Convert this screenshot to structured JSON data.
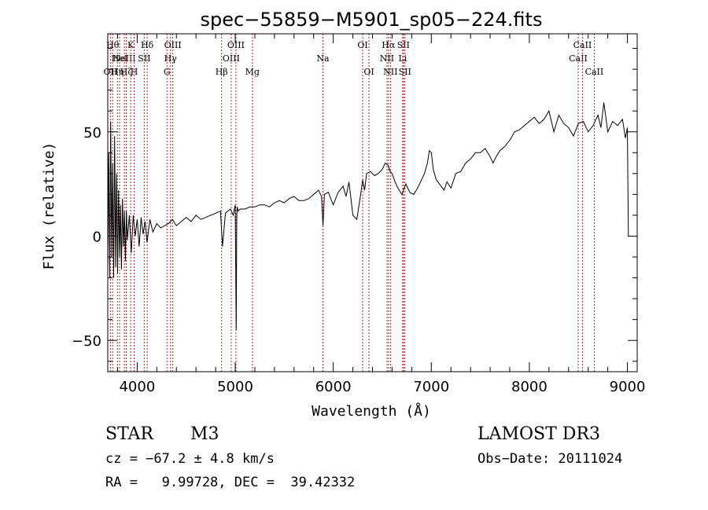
{
  "chart_data": {
    "type": "line",
    "title": "spec−55859−M5901_sp05−224.fits",
    "xlabel": "Wavelength (Å)",
    "ylabel": "Flux (relative)",
    "xlim": [
      3700,
      9100
    ],
    "ylim": [
      -65,
      97
    ],
    "xticks": [
      4000,
      5000,
      6000,
      7000,
      8000,
      9000
    ],
    "yticks": [
      -50,
      0,
      50
    ],
    "series": [
      {
        "name": "flux",
        "x": [
          3700,
          3710,
          3720,
          3730,
          3740,
          3750,
          3760,
          3770,
          3780,
          3790,
          3800,
          3810,
          3820,
          3830,
          3840,
          3850,
          3860,
          3870,
          3880,
          3890,
          3900,
          3920,
          3940,
          3960,
          3980,
          4000,
          4020,
          4040,
          4060,
          4080,
          4100,
          4130,
          4160,
          4200,
          4240,
          4280,
          4320,
          4360,
          4400,
          4450,
          4500,
          4550,
          4600,
          4650,
          4700,
          4750,
          4800,
          4850,
          4870,
          4900,
          4950,
          4980,
          5000,
          5010,
          5015,
          5020,
          5030,
          5050,
          5100,
          5150,
          5200,
          5250,
          5300,
          5350,
          5400,
          5450,
          5500,
          5550,
          5600,
          5650,
          5700,
          5750,
          5800,
          5850,
          5880,
          5895,
          5910,
          5950,
          6000,
          6050,
          6100,
          6130,
          6160,
          6200,
          6240,
          6280,
          6300,
          6320,
          6340,
          6380,
          6420,
          6460,
          6500,
          6530,
          6560,
          6580,
          6600,
          6630,
          6660,
          6700,
          6740,
          6780,
          6820,
          6860,
          6900,
          6930,
          6960,
          6980,
          7000,
          7020,
          7050,
          7100,
          7130,
          7160,
          7200,
          7250,
          7300,
          7350,
          7400,
          7450,
          7500,
          7550,
          7600,
          7630,
          7660,
          7700,
          7750,
          7800,
          7850,
          7900,
          7950,
          8000,
          8050,
          8100,
          8150,
          8200,
          8250,
          8300,
          8350,
          8400,
          8450,
          8500,
          8550,
          8600,
          8650,
          8700,
          8730,
          8760,
          8800,
          8850,
          8900,
          8950,
          8980,
          9000,
          9010
        ],
        "y": [
          -18,
          40,
          -20,
          55,
          -10,
          35,
          -20,
          48,
          -15,
          30,
          -18,
          22,
          -10,
          15,
          -16,
          18,
          -5,
          12,
          -12,
          12,
          -2,
          10,
          -8,
          10,
          0,
          8,
          -5,
          9,
          1,
          7,
          -3,
          8,
          2,
          6,
          4,
          5,
          6,
          8,
          5,
          7,
          9,
          7,
          10,
          8,
          9,
          10,
          11,
          12,
          -5,
          11,
          13,
          10,
          15,
          -45,
          8,
          14,
          12,
          13,
          13,
          14,
          14,
          15,
          15,
          14,
          16,
          17,
          16,
          18,
          19,
          17,
          17,
          18,
          20,
          22,
          19,
          5,
          20,
          21,
          15,
          21,
          24,
          19,
          26,
          10,
          8,
          20,
          27,
          22,
          30,
          31,
          29,
          30,
          32,
          35,
          34,
          31,
          30,
          26,
          23,
          20,
          25,
          21,
          20,
          23,
          27,
          30,
          35,
          41,
          40,
          32,
          27,
          24,
          22,
          26,
          23,
          30,
          31,
          35,
          37,
          40,
          40,
          42,
          38,
          35,
          38,
          41,
          43,
          46,
          50,
          51,
          53,
          55,
          57,
          54,
          56,
          60,
          50,
          58,
          54,
          52,
          48,
          54,
          55,
          50,
          53,
          58,
          52,
          64,
          50,
          55,
          53,
          56,
          47,
          52,
          0
        ]
      }
    ],
    "lines": [
      {
        "wave": 3727,
        "label": "OII",
        "row": 3
      },
      {
        "wave": 3750,
        "label": "Hθ",
        "row": 1
      },
      {
        "wave": 3798,
        "label": "Hη",
        "row": 3
      },
      {
        "wave": 3820,
        "label": "HeI",
        "row": 2
      },
      {
        "wave": 3869,
        "label": "NeIII",
        "row": 2
      },
      {
        "wave": 3889,
        "label": "Hζ",
        "row": 3
      },
      {
        "wave": 3934,
        "label": "K",
        "row": 1
      },
      {
        "wave": 3969,
        "label": "H",
        "row": 3
      },
      {
        "wave": 4072,
        "label": "SII",
        "row": 2
      },
      {
        "wave": 4102,
        "label": "Hδ",
        "row": 1
      },
      {
        "wave": 4304,
        "label": "G",
        "row": 3
      },
      {
        "wave": 4340,
        "label": "Hγ",
        "row": 2
      },
      {
        "wave": 4363,
        "label": "OIII",
        "row": 1
      },
      {
        "wave": 4861,
        "label": "Hβ",
        "row": 3
      },
      {
        "wave": 4959,
        "label": "OIII",
        "row": 2
      },
      {
        "wave": 5007,
        "label": "OIII",
        "row": 1
      },
      {
        "wave": 5175,
        "label": "Mg",
        "row": 3
      },
      {
        "wave": 5894,
        "label": "Na",
        "row": 2
      },
      {
        "wave": 6300,
        "label": "OI",
        "row": 1
      },
      {
        "wave": 6364,
        "label": "OI",
        "row": 3
      },
      {
        "wave": 6548,
        "label": "NII",
        "row": 2
      },
      {
        "wave": 6563,
        "label": "Hα",
        "row": 1
      },
      {
        "wave": 6583,
        "label": "NII",
        "row": 3
      },
      {
        "wave": 6708,
        "label": "Li",
        "row": 2
      },
      {
        "wave": 6716,
        "label": "SII",
        "row": 1
      },
      {
        "wave": 6731,
        "label": "SII",
        "row": 3
      },
      {
        "wave": 8498,
        "label": "CaII",
        "row": 2
      },
      {
        "wave": 8542,
        "label": "CaII",
        "row": 1
      },
      {
        "wave": 8662,
        "label": "CaII",
        "row": 3
      }
    ]
  },
  "info": {
    "object_class": "STAR",
    "subclass": "M3",
    "survey": "LAMOST DR3",
    "cz": "cz = −67.2 ± 4.8 km/s",
    "obs_date": "Obs−Date: 20111024",
    "radec": "RA =   9.99728, DEC =  39.42332"
  }
}
